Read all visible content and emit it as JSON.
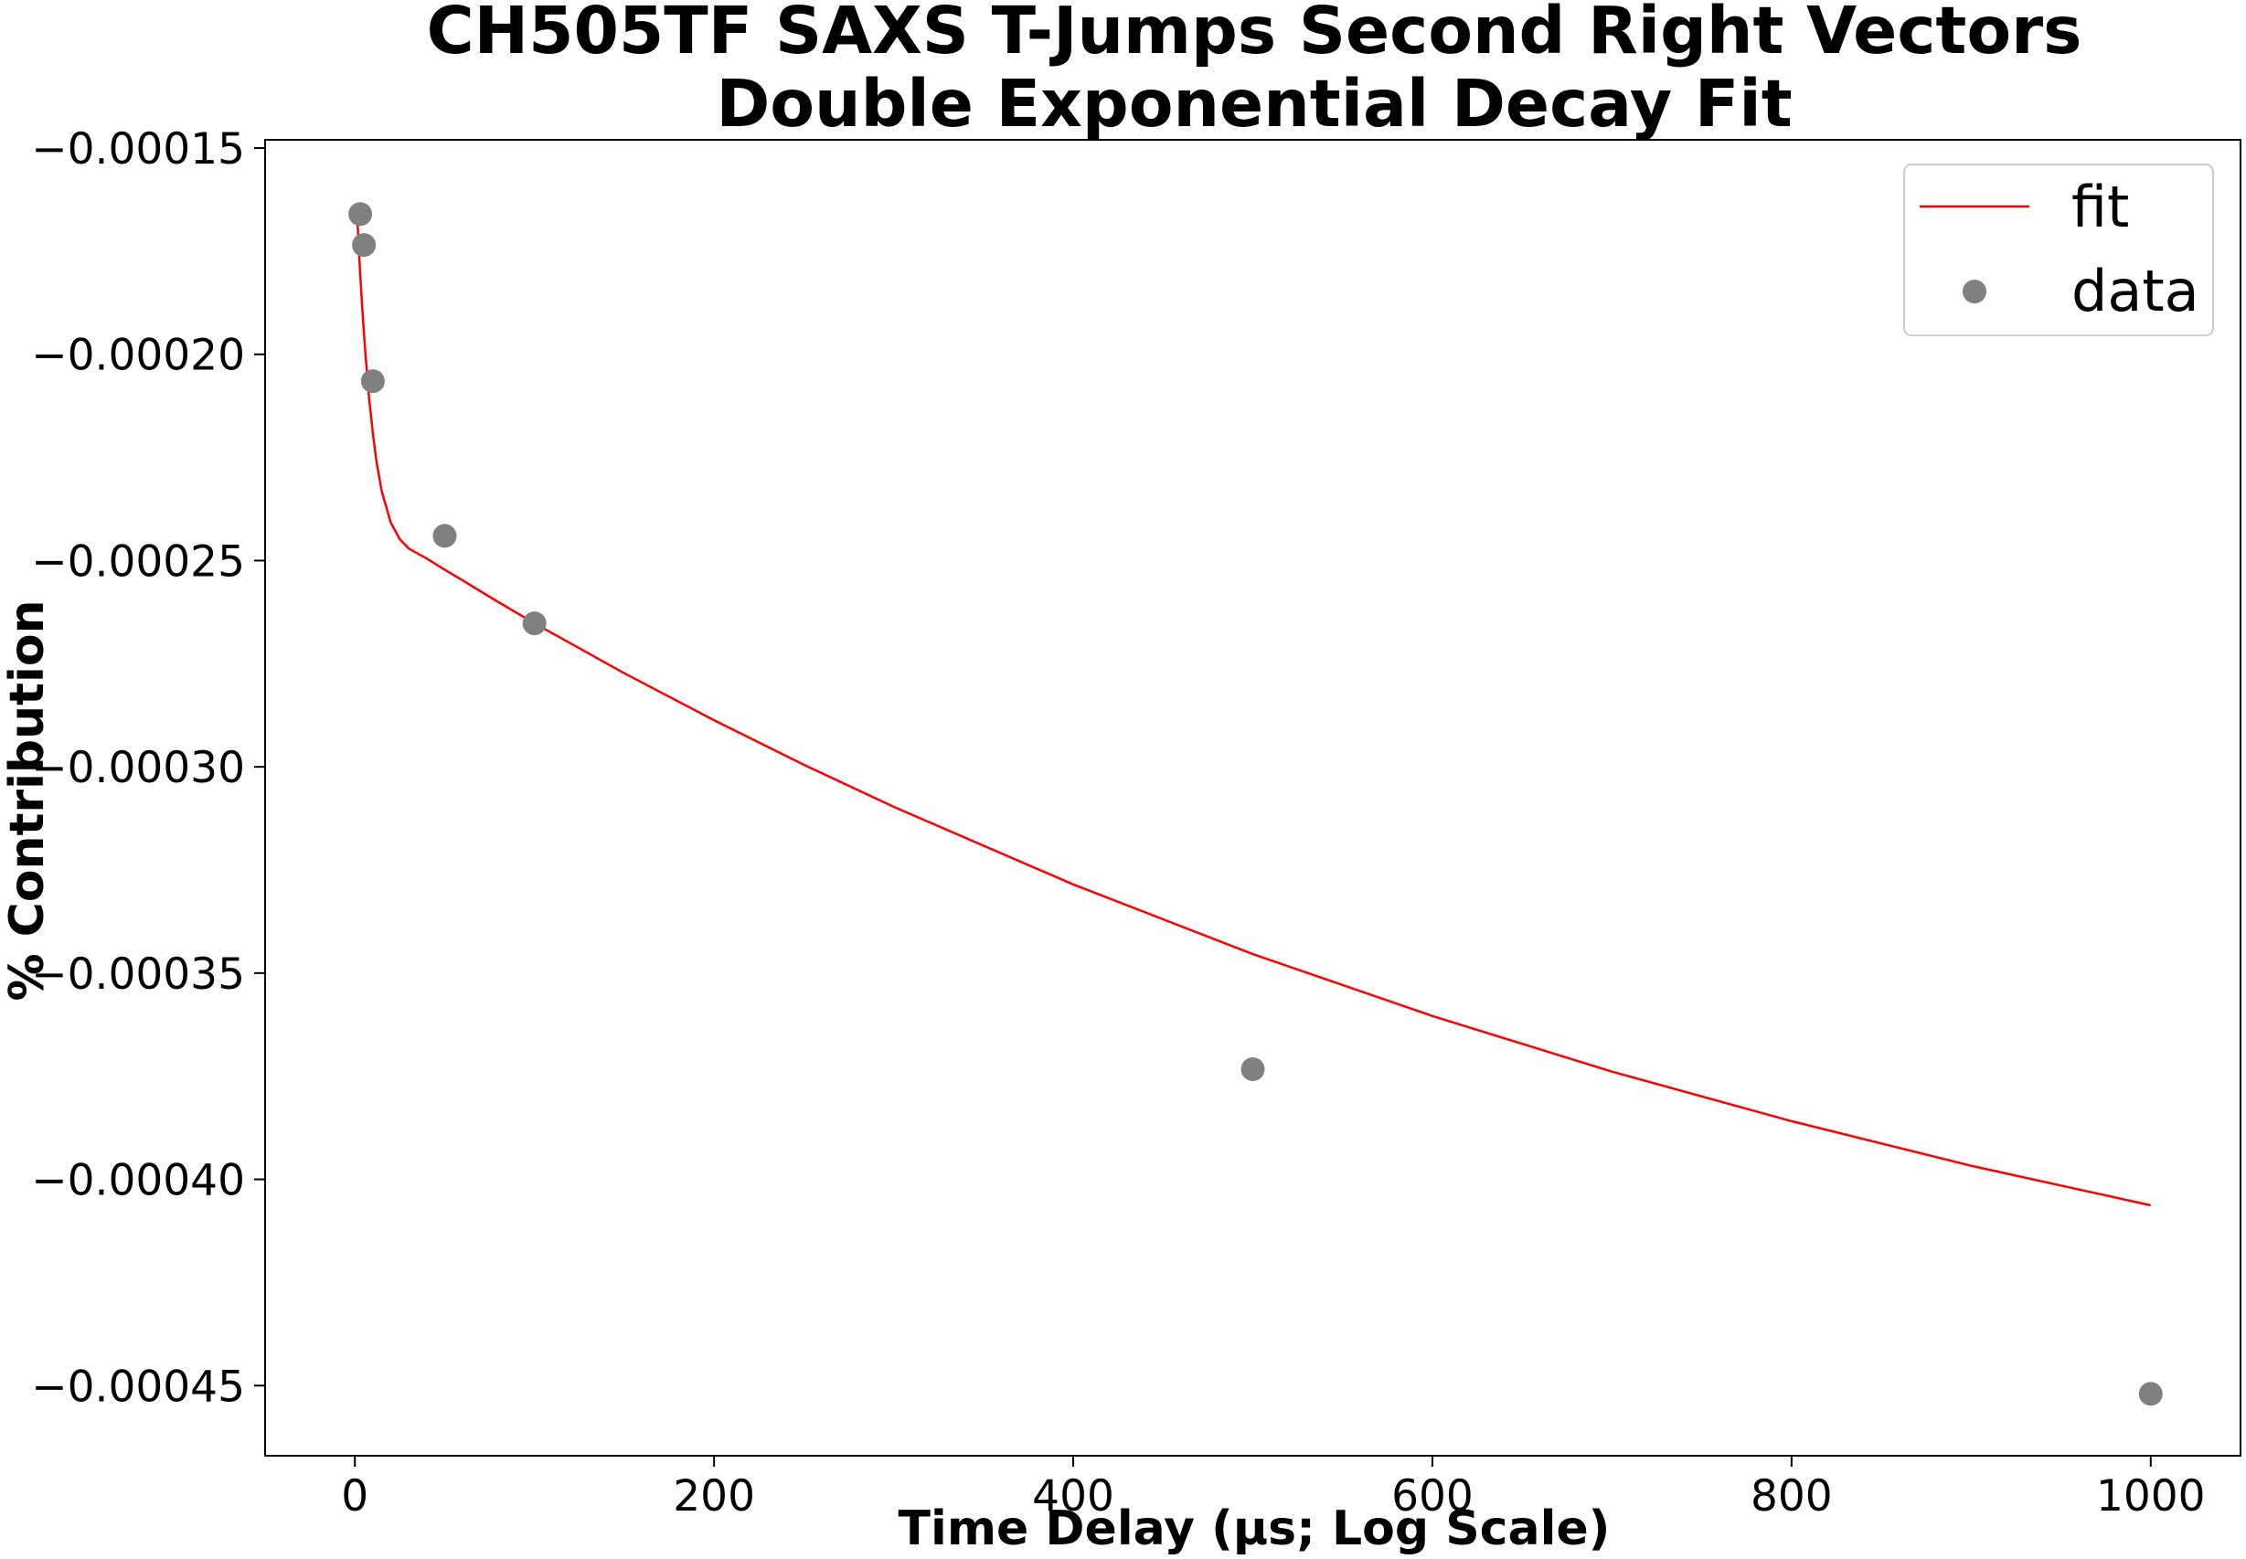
{
  "chart_data": {
    "type": "scatter",
    "title_lines": [
      "CH505TF SAXS T-Jumps Second Right Vectors",
      "Double Exponential Decay Fit"
    ],
    "xlabel": "Time Delay (μs; Log Scale)",
    "ylabel": "% Contribution",
    "xlim": [
      -50,
      1050
    ],
    "ylim": [
      -0.000467,
      -0.000148
    ],
    "xticks": [
      0,
      200,
      400,
      600,
      800,
      1000
    ],
    "xtick_labels": [
      "0",
      "200",
      "400",
      "600",
      "800",
      "1000"
    ],
    "yticks": [
      -0.00015,
      -0.0002,
      -0.00025,
      -0.0003,
      -0.00035,
      -0.0004,
      -0.00045
    ],
    "ytick_labels": [
      "−0.00015",
      "−0.00020",
      "−0.00025",
      "−0.00030",
      "−0.00035",
      "−0.00040",
      "−0.00045"
    ],
    "grid": false,
    "legend_position": "top-right",
    "series": [
      {
        "name": "fit",
        "kind": "line",
        "color": "#ff0000",
        "x": [
          1,
          2,
          3,
          4,
          5,
          6,
          8,
          10,
          12,
          15,
          20,
          25,
          30,
          40,
          50,
          60,
          80,
          100,
          150,
          200,
          250,
          300,
          400,
          500,
          600,
          700,
          800,
          900,
          1000
        ],
        "y": [
          -0.000164,
          -0.0001728,
          -0.0001808,
          -0.0001881,
          -0.0001947,
          -0.0002006,
          -0.0002109,
          -0.0002192,
          -0.0002259,
          -0.0002333,
          -0.0002408,
          -0.0002448,
          -0.0002471,
          -0.0002495,
          -0.0002522,
          -0.0002548,
          -0.0002601,
          -0.0002652,
          -0.0002773,
          -0.0002887,
          -0.0002995,
          -0.0003097,
          -0.0003285,
          -0.0003454,
          -0.0003604,
          -0.0003739,
          -0.0003859,
          -0.0003967,
          -0.0004063
        ]
      },
      {
        "name": "data",
        "kind": "scatter",
        "color": "#808080",
        "x": [
          3,
          5,
          10,
          50,
          100,
          500,
          1000
        ],
        "y": [
          -0.000166,
          -0.0001735,
          -0.0002065,
          -0.000244,
          -0.0002652,
          -0.0003733,
          -0.000452
        ]
      }
    ]
  }
}
